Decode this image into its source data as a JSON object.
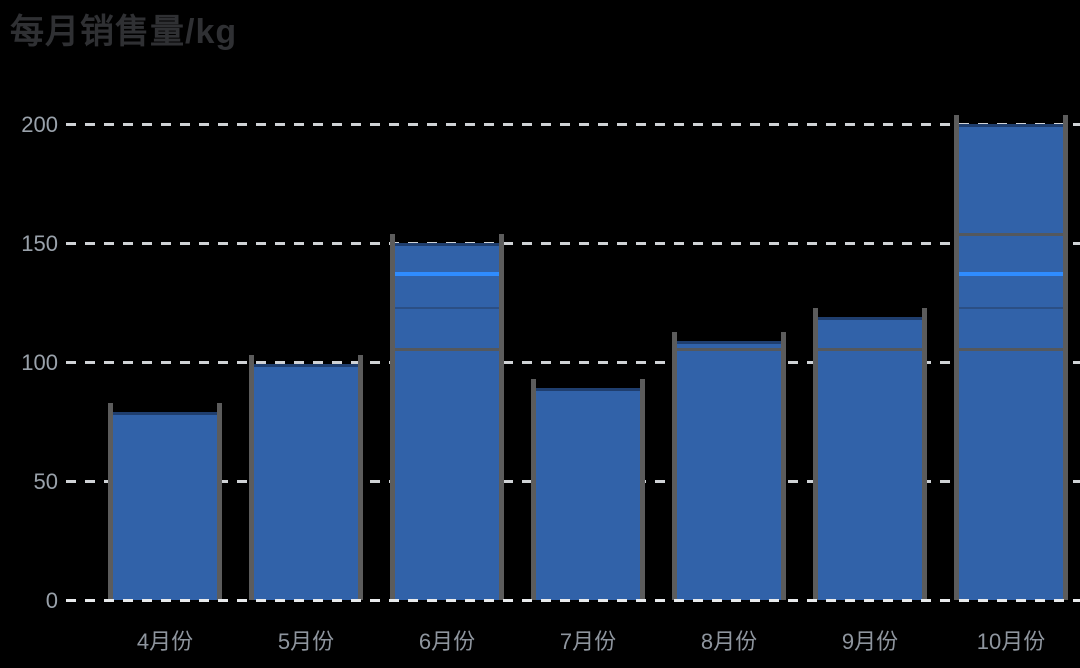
{
  "title": {
    "text": "每月销售量/kg"
  },
  "colors": {
    "background": "#000000",
    "bar": "#3162a9",
    "bar_top_cap": "#14263f",
    "gridline_dash": "#cfd2d5",
    "baseline_dash": "#e8eaec",
    "bar_side_line": "#5c5c5c",
    "y_tick_label": "#99a1aa",
    "x_tick_label": "#8e959e",
    "title_text": "#2f3033",
    "ghost_line_dark": "#54585d",
    "ghost_line_faint": "#2b4f85",
    "ghost_line_bright": "#2f8cff"
  },
  "chart_data": {
    "type": "bar",
    "title": "每月销售量/kg",
    "categories": [
      "4月份",
      "5月份",
      "6月份",
      "7月份",
      "8月份",
      "9月份",
      "10月份"
    ],
    "values": [
      79,
      99,
      150,
      89,
      109,
      119,
      200
    ],
    "xlabel": "",
    "ylabel": "",
    "ylim": [
      0,
      200
    ],
    "yticks": [
      "0",
      "50",
      "100",
      "150",
      "200"
    ],
    "ytick_values": [
      0,
      50,
      100,
      150,
      200
    ],
    "grid": "horizontal-dashed",
    "legend": "none",
    "bar_color": "#3162a9",
    "ghost_lines": [
      {
        "value": 106,
        "style": "dark"
      },
      {
        "value": 123,
        "style": "faint"
      },
      {
        "value": 138,
        "style": "bright"
      },
      {
        "value": 154,
        "style": "dark"
      }
    ]
  }
}
